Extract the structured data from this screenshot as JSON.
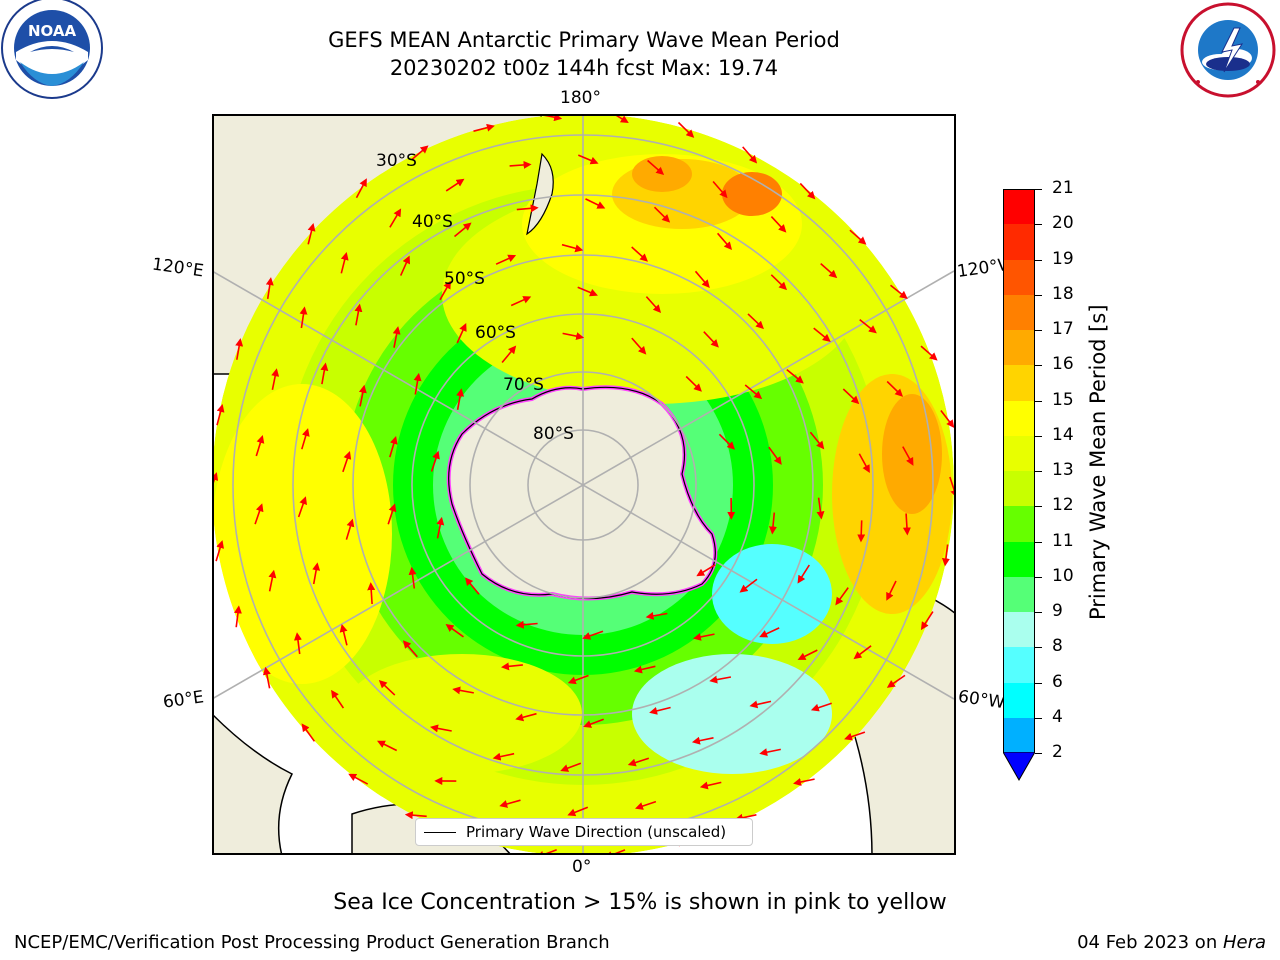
{
  "title": {
    "line1": "GEFS MEAN Antarctic Primary Wave Mean Period",
    "line2": "20230202 t00z 144h fcst   Max: 19.74"
  },
  "logos": {
    "left": "NOAA",
    "left_ring_text": "NATIONAL OCEANIC AND ATMOSPHERIC ADMINISTRATION · U.S. DEPARTMENT OF COMMERCE",
    "right_ring_text": "NATIONAL WEATHER SERVICE"
  },
  "map": {
    "lon_labels": {
      "top": "180°",
      "bottom": "0°",
      "upper_left": "120°E",
      "upper_right": "120°W",
      "lower_left": "60°E",
      "lower_right": "60°W"
    },
    "lat_labels": [
      "30°S",
      "40°S",
      "50°S",
      "60°S",
      "70°S",
      "80°S"
    ],
    "legend_label": "Primary Wave Direction (unscaled)"
  },
  "colorbar": {
    "label": "Primary Wave Mean Period [s]",
    "ticks": [
      "21",
      "20",
      "19",
      "18",
      "17",
      "16",
      "15",
      "14",
      "13",
      "12",
      "11",
      "10",
      "9",
      "8",
      "6",
      "4",
      "2"
    ],
    "colors": [
      "#ff0000",
      "#ff2a00",
      "#ff5500",
      "#ff8000",
      "#ffaa00",
      "#ffd400",
      "#ffff00",
      "#e8ff00",
      "#c8ff00",
      "#66ff00",
      "#00ff00",
      "#55ff77",
      "#aaffee",
      "#55ffff",
      "#00ffff",
      "#00b0ff",
      "#0060ff",
      "#0010ff"
    ],
    "extend_color": "#0000ff"
  },
  "caption": "Sea Ice Concentration > 15% is shown in pink to yellow",
  "footer": {
    "left": "NCEP/EMC/Verification Post Processing Product Generation Branch",
    "right_date": "04 Feb 2023 on ",
    "right_host": "Hera"
  }
}
